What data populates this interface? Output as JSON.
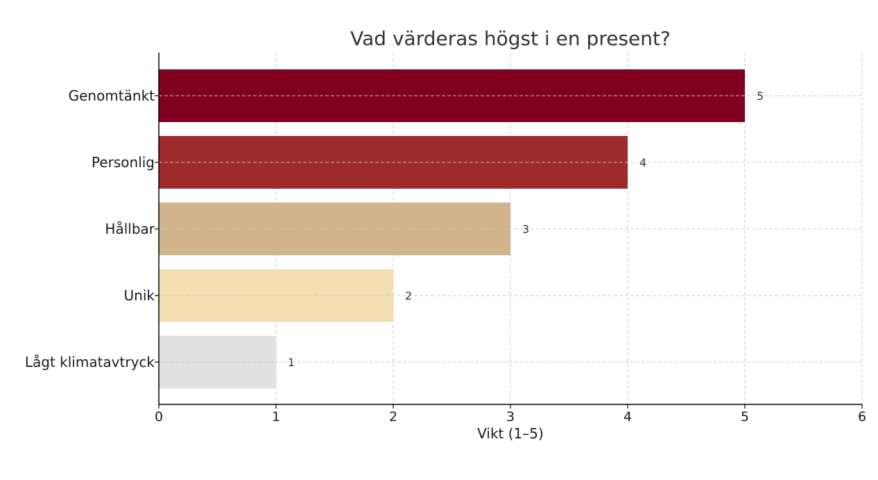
{
  "chart_data": {
    "type": "bar",
    "orientation": "horizontal",
    "title": "Vad värderas högst i en present?",
    "xlabel": "Vikt (1–5)",
    "ylabel": "",
    "categories": [
      "Genomtänkt",
      "Personlig",
      "Hållbar",
      "Unik",
      "Lågt klimatavtryck"
    ],
    "values": [
      5,
      4,
      3,
      2,
      1
    ],
    "data_labels": [
      "5",
      "4",
      "3",
      "2",
      "1"
    ],
    "colors": [
      "#800020",
      "#9e2a2b",
      "#d1b38c",
      "#f4deb1",
      "#e0e0e0"
    ],
    "xlim": [
      0,
      6
    ],
    "xticks": [
      0,
      1,
      2,
      3,
      4,
      5,
      6
    ],
    "xtick_labels": [
      "0",
      "1",
      "2",
      "3",
      "4",
      "5",
      "6"
    ],
    "grid": true
  }
}
